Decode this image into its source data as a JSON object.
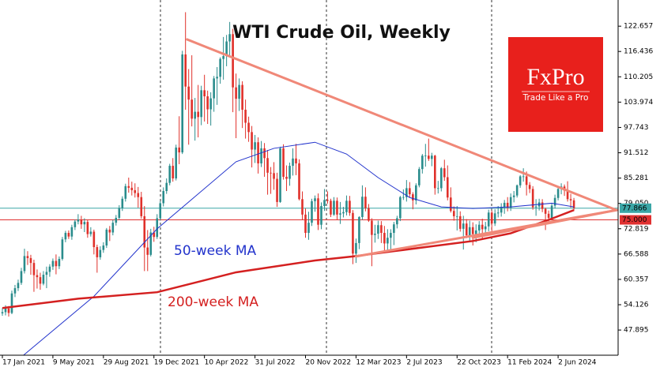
{
  "chart_data": {
    "type": "candlestick",
    "title": "WTI Crude Oil, Weekly",
    "up_color": "#2a8c8c",
    "down_color": "#e0302a",
    "xlim": [
      -0.75,
      195
    ],
    "ylim": [
      41.7,
      129.1
    ],
    "xticks": [
      {
        "value": 0,
        "label": "17 Jan 2021"
      },
      {
        "value": 16,
        "label": "9 May 2021"
      },
      {
        "value": 32,
        "label": "29 Aug 2021"
      },
      {
        "value": 48,
        "label": "19 Dec 2021"
      },
      {
        "value": 64,
        "label": "10 Apr 2022"
      },
      {
        "value": 80,
        "label": "31 Jul 2022"
      },
      {
        "value": 96,
        "label": "20 Nov 2022"
      },
      {
        "value": 112,
        "label": "12 Mar 2023"
      },
      {
        "value": 128,
        "label": "2 Jul 2023"
      },
      {
        "value": 144,
        "label": "22 Oct 2023"
      },
      {
        "value": 160,
        "label": "11 Feb 2024"
      },
      {
        "value": 176,
        "label": "2 Jun 2024"
      }
    ],
    "yticks": [
      47.895,
      54.126,
      60.357,
      66.588,
      72.819,
      {
        "value": 79.05,
        "label": "79.050"
      },
      85.281,
      91.512,
      97.743,
      103.974,
      110.205,
      116.436,
      122.657
    ],
    "candles": [
      [
        52.0,
        53.3,
        51.4,
        52.3
      ],
      [
        52.3,
        54.0,
        51.5,
        53.2
      ],
      [
        53.2,
        53.8,
        51.2,
        52.1
      ],
      [
        52.1,
        57.6,
        51.8,
        56.9
      ],
      [
        56.9,
        59.0,
        56.0,
        58.2
      ],
      [
        58.2,
        60.3,
        57.5,
        59.5
      ],
      [
        59.5,
        63.2,
        59.0,
        62.4
      ],
      [
        62.4,
        67.9,
        61.8,
        66.1
      ],
      [
        66.1,
        67.3,
        63.9,
        65.6
      ],
      [
        65.6,
        66.4,
        61.5,
        64.4
      ],
      [
        64.4,
        65.2,
        57.3,
        61.4
      ],
      [
        61.4,
        62.8,
        58.1,
        60.9
      ],
      [
        60.9,
        62.0,
        57.8,
        59.3
      ],
      [
        59.3,
        62.4,
        58.9,
        61.5
      ],
      [
        61.5,
        63.5,
        58.2,
        62.2
      ],
      [
        62.2,
        64.1,
        61.0,
        63.5
      ],
      [
        63.5,
        65.5,
        62.7,
        64.9
      ],
      [
        64.9,
        66.5,
        61.6,
        63.6
      ],
      [
        63.6,
        66.0,
        62.9,
        65.4
      ],
      [
        65.4,
        70.8,
        65.0,
        70.2
      ],
      [
        70.2,
        72.3,
        69.5,
        71.8
      ],
      [
        71.8,
        72.4,
        70.3,
        70.9
      ],
      [
        70.9,
        73.8,
        70.1,
        73.2
      ],
      [
        73.2,
        75.1,
        72.5,
        74.6
      ],
      [
        74.6,
        76.4,
        73.9,
        75.1
      ],
      [
        75.1,
        76.0,
        72.8,
        73.9
      ],
      [
        73.9,
        75.4,
        72.0,
        74.5
      ],
      [
        74.5,
        75.0,
        70.6,
        71.5
      ],
      [
        71.5,
        73.2,
        70.9,
        72.1
      ],
      [
        72.1,
        72.6,
        66.5,
        68.3
      ],
      [
        68.3,
        68.9,
        62.0,
        65.8
      ],
      [
        65.8,
        68.5,
        65.2,
        67.6
      ],
      [
        67.6,
        69.5,
        66.9,
        68.7
      ],
      [
        68.7,
        73.0,
        68.1,
        72.6
      ],
      [
        72.6,
        73.5,
        69.8,
        71.9
      ],
      [
        71.9,
        75.0,
        71.2,
        74.3
      ],
      [
        74.3,
        76.2,
        73.6,
        75.5
      ],
      [
        75.5,
        78.6,
        75.0,
        77.9
      ],
      [
        77.9,
        80.8,
        77.2,
        80.2
      ],
      [
        80.2,
        83.9,
        79.5,
        83.3
      ],
      [
        83.3,
        85.4,
        81.7,
        82.9
      ],
      [
        82.9,
        84.4,
        81.0,
        82.3
      ],
      [
        82.3,
        84.0,
        80.5,
        81.6
      ],
      [
        81.6,
        83.1,
        78.0,
        80.6
      ],
      [
        80.6,
        81.9,
        75.3,
        75.9
      ],
      [
        75.9,
        78.4,
        62.4,
        68.2
      ],
      [
        68.2,
        72.5,
        62.4,
        66.4
      ],
      [
        66.4,
        72.8,
        66.0,
        71.9
      ],
      [
        71.9,
        73.3,
        69.6,
        70.8
      ],
      [
        70.8,
        76.4,
        70.3,
        75.4
      ],
      [
        75.4,
        79.6,
        74.8,
        79.1
      ],
      [
        79.1,
        83.0,
        78.3,
        82.1
      ],
      [
        82.1,
        85.2,
        81.4,
        84.1
      ],
      [
        84.1,
        88.8,
        83.5,
        88.3
      ],
      [
        88.3,
        90.2,
        84.4,
        85.2
      ],
      [
        85.2,
        93.5,
        84.7,
        92.8
      ],
      [
        92.8,
        100.5,
        88.7,
        91.6
      ],
      [
        91.6,
        116.6,
        91.2,
        115.7
      ],
      [
        115.7,
        126.1,
        102.1,
        107.8
      ],
      [
        107.8,
        112.1,
        93.5,
        104.6
      ],
      [
        104.6,
        115.5,
        98.0,
        99.9
      ],
      [
        99.9,
        105.0,
        94.5,
        101.6
      ],
      [
        101.6,
        108.2,
        95.3,
        100.3
      ],
      [
        100.3,
        108.0,
        98.3,
        106.9
      ],
      [
        106.9,
        110.7,
        99.2,
        105.4
      ],
      [
        105.4,
        106.8,
        98.6,
        102.2
      ],
      [
        102.2,
        106.4,
        98.2,
        104.9
      ],
      [
        104.9,
        110.4,
        101.6,
        109.8
      ],
      [
        109.8,
        112.6,
        103.3,
        110.2
      ],
      [
        110.2,
        115.0,
        108.5,
        114.6
      ],
      [
        114.6,
        120.0,
        109.5,
        115.3
      ],
      [
        115.3,
        120.5,
        112.8,
        118.9
      ],
      [
        118.9,
        123.7,
        115.2,
        120.7
      ],
      [
        120.7,
        122.0,
        101.5,
        107.6
      ],
      [
        107.6,
        111.0,
        95.1,
        104.8
      ],
      [
        104.8,
        109.8,
        101.8,
        108.2
      ],
      [
        108.2,
        109.1,
        97.6,
        102.1
      ],
      [
        102.1,
        104.6,
        95.0,
        98.9
      ],
      [
        98.9,
        100.4,
        94.2,
        96.6
      ],
      [
        96.6,
        98.1,
        87.9,
        92.3
      ],
      [
        92.3,
        95.9,
        89.0,
        94.1
      ],
      [
        94.1,
        95.3,
        86.4,
        88.9
      ],
      [
        88.9,
        94.4,
        88.0,
        92.6
      ],
      [
        92.6,
        93.9,
        85.6,
        90.2
      ],
      [
        90.2,
        92.2,
        81.2,
        86.6
      ],
      [
        86.6,
        88.0,
        81.4,
        86.5
      ],
      [
        86.5,
        89.2,
        82.4,
        85.1
      ],
      [
        85.1,
        86.6,
        78.2,
        79.4
      ],
      [
        79.4,
        93.0,
        79.2,
        92.6
      ],
      [
        92.6,
        93.6,
        84.9,
        85.6
      ],
      [
        85.6,
        88.4,
        82.1,
        85.1
      ],
      [
        85.1,
        89.1,
        83.4,
        88.3
      ],
      [
        88.3,
        92.6,
        85.9,
        90.1
      ],
      [
        90.1,
        93.7,
        86.0,
        88.9
      ],
      [
        88.9,
        89.9,
        79.8,
        80.1
      ],
      [
        80.1,
        82.0,
        75.1,
        76.3
      ],
      [
        76.3,
        77.8,
        70.6,
        71.8
      ],
      [
        71.8,
        77.0,
        70.1,
        74.3
      ],
      [
        74.3,
        80.2,
        73.5,
        79.6
      ],
      [
        79.6,
        81.0,
        77.0,
        80.3
      ],
      [
        80.3,
        81.5,
        72.5,
        73.8
      ],
      [
        73.8,
        79.3,
        72.7,
        78.4
      ],
      [
        78.4,
        82.6,
        77.2,
        79.9
      ],
      [
        79.9,
        82.0,
        79.0,
        79.7
      ],
      [
        79.7,
        80.2,
        75.7,
        76.3
      ],
      [
        76.3,
        80.6,
        76.0,
        79.7
      ],
      [
        79.7,
        80.5,
        75.1,
        76.3
      ],
      [
        76.3,
        79.4,
        74.0,
        76.6
      ],
      [
        76.6,
        78.2,
        75.6,
        76.9
      ],
      [
        76.9,
        81.0,
        76.1,
        79.7
      ],
      [
        79.7,
        80.9,
        76.0,
        76.7
      ],
      [
        76.7,
        77.4,
        64.1,
        66.7
      ],
      [
        66.7,
        70.4,
        64.4,
        69.3
      ],
      [
        69.3,
        75.9,
        67.8,
        75.7
      ],
      [
        75.7,
        83.5,
        75.0,
        80.7
      ],
      [
        80.7,
        83.0,
        77.1,
        77.9
      ],
      [
        77.9,
        78.9,
        74.5,
        74.8
      ],
      [
        74.8,
        75.4,
        63.6,
        71.3
      ],
      [
        71.3,
        73.8,
        69.4,
        71.6
      ],
      [
        71.6,
        74.8,
        70.3,
        73.7
      ],
      [
        73.7,
        74.7,
        69.3,
        71.8
      ],
      [
        71.8,
        73.5,
        67.0,
        69.2
      ],
      [
        69.2,
        72.7,
        67.5,
        70.6
      ],
      [
        70.6,
        72.7,
        67.1,
        71.8
      ],
      [
        71.8,
        74.5,
        68.8,
        73.9
      ],
      [
        73.9,
        76.0,
        72.9,
        75.4
      ],
      [
        75.4,
        80.9,
        74.7,
        80.6
      ],
      [
        80.6,
        82.5,
        79.9,
        80.6
      ],
      [
        80.6,
        84.8,
        79.5,
        82.8
      ],
      [
        82.8,
        84.3,
        80.5,
        81.3
      ],
      [
        81.3,
        81.8,
        77.6,
        79.8
      ],
      [
        79.8,
        84.0,
        78.8,
        83.5
      ],
      [
        83.5,
        88.0,
        83.0,
        87.5
      ],
      [
        87.5,
        91.2,
        86.4,
        90.8
      ],
      [
        90.8,
        93.7,
        88.1,
        90.8
      ],
      [
        90.8,
        95.0,
        89.5,
        90.0
      ],
      [
        90.0,
        91.5,
        88.2,
        90.8
      ],
      [
        90.8,
        91.0,
        81.2,
        82.8
      ],
      [
        82.8,
        84.6,
        81.5,
        82.8
      ],
      [
        82.8,
        88.0,
        82.0,
        87.7
      ],
      [
        87.7,
        89.8,
        84.6,
        85.5
      ],
      [
        85.5,
        88.4,
        79.8,
        80.5
      ],
      [
        80.5,
        83.0,
        76.8,
        77.2
      ],
      [
        77.2,
        78.3,
        74.8,
        75.9
      ],
      [
        75.9,
        78.4,
        72.4,
        75.9
      ],
      [
        75.9,
        77.1,
        72.1,
        72.8
      ],
      [
        72.8,
        76.0,
        67.7,
        74.1
      ],
      [
        74.1,
        75.2,
        70.5,
        71.2
      ],
      [
        71.2,
        74.8,
        69.8,
        73.2
      ],
      [
        73.2,
        74.4,
        68.7,
        71.5
      ],
      [
        71.5,
        73.9,
        69.5,
        72.4
      ],
      [
        72.4,
        74.7,
        71.6,
        73.8
      ],
      [
        73.8,
        75.3,
        70.1,
        72.7
      ],
      [
        72.7,
        74.5,
        71.1,
        73.4
      ],
      [
        73.4,
        77.5,
        72.2,
        76.8
      ],
      [
        76.8,
        77.3,
        71.4,
        74.1
      ],
      [
        74.1,
        77.6,
        73.5,
        76.6
      ],
      [
        76.6,
        78.4,
        75.6,
        76.8
      ],
      [
        76.8,
        79.1,
        75.8,
        78.2
      ],
      [
        78.2,
        79.9,
        76.5,
        79.2
      ],
      [
        79.2,
        80.6,
        77.1,
        78.0
      ],
      [
        78.0,
        81.5,
        77.2,
        80.6
      ],
      [
        80.6,
        82.1,
        79.3,
        81.0
      ],
      [
        81.0,
        83.7,
        80.5,
        83.5
      ],
      [
        83.5,
        86.0,
        82.9,
        85.7
      ],
      [
        85.7,
        87.7,
        84.4,
        85.7
      ],
      [
        85.7,
        86.9,
        81.0,
        83.6
      ],
      [
        83.6,
        84.3,
        81.6,
        82.6
      ],
      [
        82.6,
        83.3,
        77.5,
        78.1
      ],
      [
        78.1,
        80.1,
        76.0,
        78.3
      ],
      [
        78.3,
        80.2,
        77.3,
        79.3
      ],
      [
        79.3,
        80.1,
        76.9,
        77.7
      ],
      [
        77.7,
        78.0,
        72.5,
        76.5
      ],
      [
        76.5,
        77.3,
        74.6,
        75.5
      ],
      [
        75.5,
        79.1,
        75.1,
        78.5
      ],
      [
        78.5,
        81.2,
        77.8,
        80.4
      ],
      [
        80.4,
        83.0,
        79.8,
        82.6
      ],
      [
        82.6,
        84.0,
        81.3,
        83.2
      ],
      [
        83.2,
        83.7,
        80.9,
        82.2
      ],
      [
        82.2,
        84.5,
        79.5,
        80.1
      ],
      [
        80.1,
        81.4,
        78.0,
        79.8
      ],
      [
        79.8,
        80.4,
        77.2,
        77.9
      ]
    ],
    "series": [
      {
        "name": "50-week MA",
        "color": "#2233cc",
        "width": 1,
        "x": [
          6.7,
          29,
          49,
          74,
          86,
          99,
          109,
          119,
          129,
          139,
          149,
          161,
          174,
          181
        ],
        "values": [
          41.7,
          56.2,
          72.8,
          89.3,
          92.6,
          94.1,
          91.2,
          85.4,
          80.5,
          78.2,
          77.8,
          78.2,
          79.1,
          78.2
        ]
      },
      {
        "name": "200-week MA",
        "color": "#d42020",
        "width": 2.5,
        "x": [
          0,
          24,
          49,
          74,
          99,
          111,
          124,
          136,
          149,
          161,
          174,
          181
        ],
        "values": [
          53.3,
          55.6,
          57.2,
          62.1,
          65.0,
          66.0,
          67.3,
          68.5,
          69.8,
          71.7,
          75.3,
          77.4
        ]
      }
    ],
    "trendline_color": "#f08878",
    "trendlines": [
      {
        "x": [
          58.5,
          194.5
        ],
        "values": [
          119.4,
          77.4
        ]
      },
      {
        "x": [
          112,
          194.5
        ],
        "values": [
          66.0,
          77.4
        ]
      },
      {
        "x": [
          149,
          194.5
        ],
        "values": [
          70.6,
          77.4
        ]
      }
    ],
    "price_lines": [
      {
        "value": 77.866,
        "color": "#3aa6a6"
      },
      {
        "value": 75,
        "label": "75.000",
        "color": "#e03030"
      }
    ],
    "logo": {
      "brand": "FxPro",
      "tagline": "Trade Like a Pro"
    }
  }
}
